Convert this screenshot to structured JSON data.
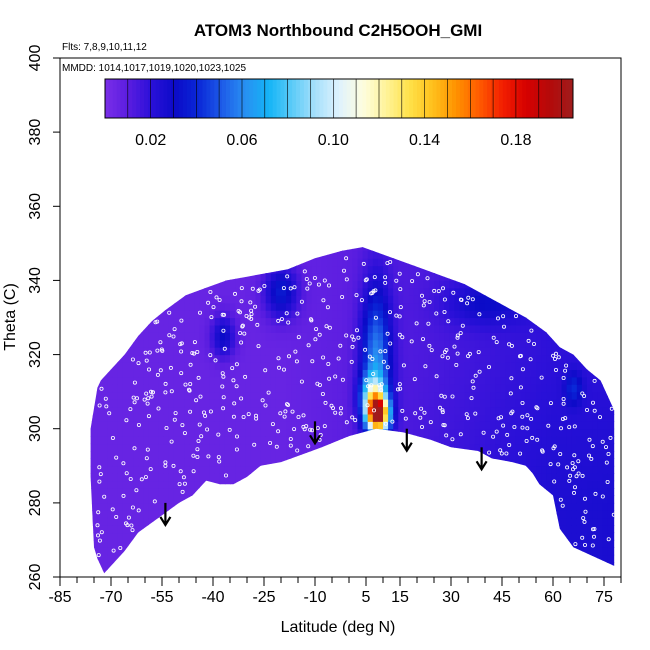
{
  "chart_data": {
    "type": "heatmap",
    "title": "ATOM3 Northbound C2H5OOH_GMI",
    "flights_note": "Flts: 7,8,9,10,11,12",
    "dates_note": "MMDD: 1014,1017,1019,1020,1023,1025",
    "xlabel": "Latitude (deg N)",
    "ylabel": "Theta (C)",
    "xlim": [
      -85,
      80
    ],
    "ylim": [
      260,
      400
    ],
    "x_ticks": [
      -85,
      -70,
      -55,
      -40,
      -25,
      -10,
      5,
      15,
      30,
      45,
      60,
      75
    ],
    "y_ticks": [
      260,
      280,
      300,
      320,
      340,
      360,
      380,
      400
    ],
    "colorbar": {
      "range": [
        0,
        0.205
      ],
      "tick_values": [
        0.02,
        0.06,
        0.1,
        0.14,
        0.18
      ],
      "tick_labels": [
        "0.02",
        "0.06",
        "0.10",
        "0.14",
        "0.18"
      ],
      "colors": [
        "#7a2ee8",
        "#5a1de0",
        "#2a10d8",
        "#0b0bc8",
        "#0a28d8",
        "#1e5ce8",
        "#2890f2",
        "#14b4f6",
        "#5ccbf8",
        "#a7e0fb",
        "#dff2fd",
        "#fdfde0",
        "#fff39a",
        "#ffe24a",
        "#ffc01c",
        "#ff9200",
        "#ff5a00",
        "#f21e00",
        "#d60000",
        "#b40a0a",
        "#a01c1c"
      ]
    },
    "field_description": "mostly low values (~0.005-0.03) with enhanced values (0.06-0.19) in a vertical plume near 5-12 N between theta 300-335",
    "arrows_latitude": [
      -54,
      -10,
      17,
      39
    ],
    "arrows_theta": [
      280,
      302,
      300,
      295
    ]
  }
}
